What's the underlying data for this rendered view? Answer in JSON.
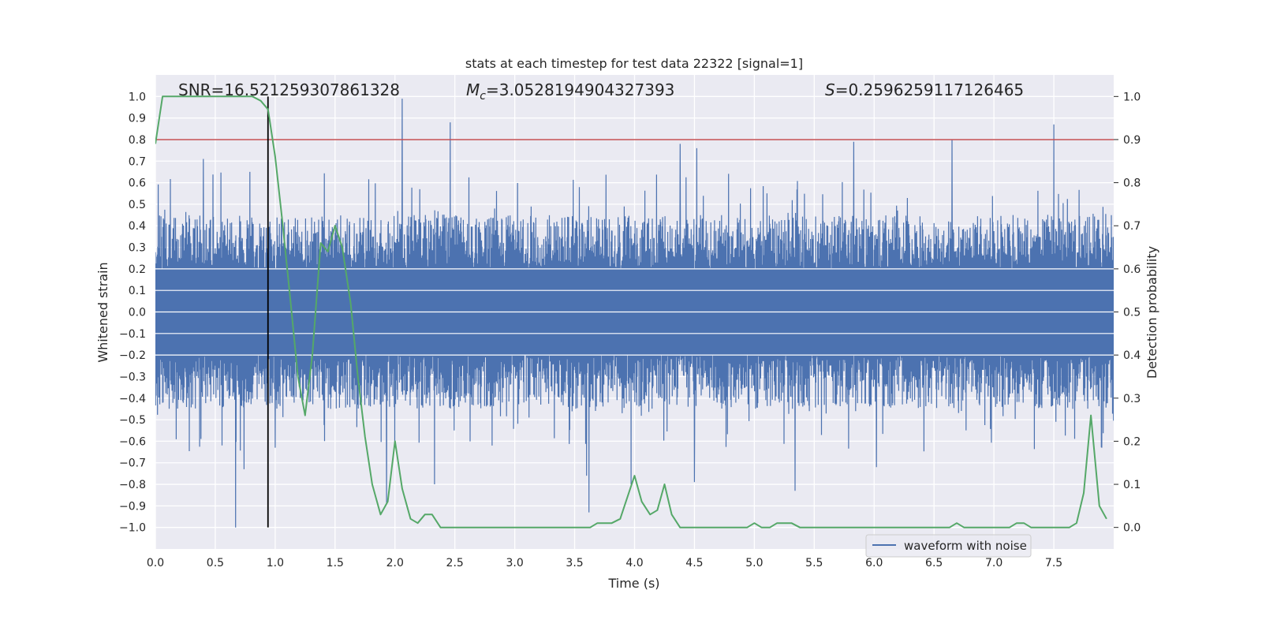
{
  "chart_data": {
    "type": "line",
    "title": "stats at each timestep for test data 22322 [signal=1]",
    "xlabel": "Time (s)",
    "ylabel": "Whitened strain",
    "y2label": "Detection probability",
    "xlim": [
      0.0,
      8.0
    ],
    "ylim": [
      -1.1,
      1.1
    ],
    "y2lim": [
      -0.05,
      1.05
    ],
    "xticks": [
      0.0,
      0.5,
      1.0,
      1.5,
      2.0,
      2.5,
      3.0,
      3.5,
      4.0,
      4.5,
      5.0,
      5.5,
      6.0,
      6.5,
      7.0,
      7.5
    ],
    "xtick_labels": [
      "0.0",
      "0.5",
      "1.0",
      "1.5",
      "2.0",
      "2.5",
      "3.0",
      "3.5",
      "4.0",
      "4.5",
      "5.0",
      "5.5",
      "6.0",
      "6.5",
      "7.0",
      "7.5"
    ],
    "yticks": [
      1.0,
      0.9,
      0.8,
      0.7,
      0.6,
      0.5,
      0.4,
      0.3,
      0.2,
      0.1,
      0.0,
      -0.1,
      -0.2,
      -0.3,
      -0.4,
      -0.5,
      -0.6,
      -0.7,
      -0.8,
      -0.9,
      -1.0
    ],
    "ytick_labels": [
      "1.0",
      "0.9",
      "0.8",
      "0.7",
      "0.6",
      "0.5",
      "0.4",
      "0.3",
      "0.2",
      "0.1",
      "0.0",
      "−0.1",
      "−0.2",
      "−0.3",
      "−0.4",
      "−0.5",
      "−0.6",
      "−0.7",
      "−0.8",
      "−0.9",
      "−1.0"
    ],
    "y2ticks": [
      1.0,
      0.9,
      0.8,
      0.7,
      0.6,
      0.5,
      0.4,
      0.3,
      0.2,
      0.1,
      0.0
    ],
    "y2tick_labels": [
      "1.0",
      "0.9",
      "0.8",
      "0.7",
      "0.6",
      "0.5",
      "0.4",
      "0.3",
      "0.2",
      "0.1",
      "0.0"
    ],
    "grid": true,
    "legend": {
      "position": "bottom-right",
      "entries": [
        "waveform with noise"
      ]
    },
    "annotations": {
      "snr_label": "SNR=16.521259307861328",
      "mc_symbol": "M",
      "mc_subscript": "c",
      "mc_value": "=3.0528194904327393",
      "s_symbol": "S",
      "s_value": "=0.2596259117126465"
    },
    "threshold_line": {
      "axis": "y2",
      "value": 0.9,
      "color": "#c44e52"
    },
    "marker_line": {
      "x": 0.94,
      "ymin": -1.0,
      "ymax": 1.0,
      "color": "#000000"
    },
    "series": [
      {
        "name": "waveform with noise",
        "axis": "y",
        "color": "#4c72b0",
        "sample_rate": 256,
        "envelope": {
          "core_abs": 0.2,
          "typical_peak_abs": 0.45,
          "min": -1.0,
          "max": 1.0
        },
        "spikes": [
          {
            "t": 0.67,
            "v": -1.0
          },
          {
            "t": 0.74,
            "v": -0.73
          },
          {
            "t": 0.4,
            "v": 0.71
          },
          {
            "t": 0.79,
            "v": 0.65
          },
          {
            "t": 1.0,
            "v": -0.63
          },
          {
            "t": 2.06,
            "v": 0.99
          },
          {
            "t": 1.93,
            "v": -0.89
          },
          {
            "t": 2.46,
            "v": 0.88
          },
          {
            "t": 2.33,
            "v": -0.8
          },
          {
            "t": 3.62,
            "v": -0.93
          },
          {
            "t": 3.6,
            "v": -0.76
          },
          {
            "t": 4.38,
            "v": 0.78
          },
          {
            "t": 4.52,
            "v": 0.76
          },
          {
            "t": 4.5,
            "v": -0.79
          },
          {
            "t": 3.97,
            "v": -0.8
          },
          {
            "t": 5.34,
            "v": -0.83
          },
          {
            "t": 5.83,
            "v": 0.79
          },
          {
            "t": 6.02,
            "v": -0.72
          },
          {
            "t": 6.65,
            "v": 0.8
          },
          {
            "t": 7.5,
            "v": 0.87
          },
          {
            "t": 7.9,
            "v": -0.63
          }
        ]
      },
      {
        "name": "detection probability",
        "axis": "y2",
        "color": "#55a868",
        "x": [
          0.0,
          0.06,
          0.13,
          0.19,
          0.25,
          0.31,
          0.38,
          0.44,
          0.5,
          0.56,
          0.63,
          0.69,
          0.75,
          0.81,
          0.88,
          0.94,
          1.0,
          1.06,
          1.13,
          1.19,
          1.25,
          1.31,
          1.38,
          1.44,
          1.5,
          1.56,
          1.63,
          1.69,
          1.75,
          1.81,
          1.88,
          1.94,
          2.0,
          2.06,
          2.13,
          2.19,
          2.25,
          2.31,
          2.38,
          2.44,
          2.5,
          2.56,
          2.63,
          2.69,
          2.75,
          2.81,
          2.88,
          2.94,
          3.0,
          3.06,
          3.13,
          3.19,
          3.25,
          3.31,
          3.38,
          3.44,
          3.5,
          3.56,
          3.63,
          3.69,
          3.75,
          3.81,
          3.88,
          3.94,
          4.0,
          4.06,
          4.13,
          4.19,
          4.25,
          4.31,
          4.38,
          4.44,
          4.5,
          4.56,
          4.63,
          4.69,
          4.75,
          4.81,
          4.88,
          4.94,
          5.0,
          5.06,
          5.13,
          5.19,
          5.25,
          5.31,
          5.38,
          5.44,
          5.5,
          5.56,
          5.63,
          5.69,
          5.75,
          5.81,
          5.88,
          5.94,
          6.0,
          6.06,
          6.13,
          6.19,
          6.25,
          6.31,
          6.38,
          6.44,
          6.5,
          6.56,
          6.63,
          6.69,
          6.75,
          6.81,
          6.88,
          6.94,
          7.0,
          7.06,
          7.13,
          7.19,
          7.25,
          7.31,
          7.38,
          7.44,
          7.5,
          7.56,
          7.63,
          7.69,
          7.75,
          7.81,
          7.88,
          7.94
        ],
        "y": [
          0.89,
          1.0,
          1.0,
          1.0,
          1.0,
          1.0,
          1.0,
          1.0,
          1.0,
          1.0,
          1.0,
          1.0,
          1.0,
          1.0,
          0.99,
          0.97,
          0.86,
          0.71,
          0.52,
          0.35,
          0.26,
          0.4,
          0.66,
          0.64,
          0.7,
          0.65,
          0.52,
          0.35,
          0.21,
          0.1,
          0.03,
          0.06,
          0.2,
          0.09,
          0.02,
          0.01,
          0.03,
          0.03,
          0.0,
          0.0,
          0.0,
          0.0,
          0.0,
          0.0,
          0.0,
          0.0,
          0.0,
          0.0,
          0.0,
          0.0,
          0.0,
          0.0,
          0.0,
          0.0,
          0.0,
          0.0,
          0.0,
          0.0,
          0.0,
          0.01,
          0.01,
          0.01,
          0.02,
          0.07,
          0.12,
          0.06,
          0.03,
          0.04,
          0.1,
          0.03,
          0.0,
          0.0,
          0.0,
          0.0,
          0.0,
          0.0,
          0.0,
          0.0,
          0.0,
          0.0,
          0.01,
          0.0,
          0.0,
          0.01,
          0.01,
          0.01,
          0.0,
          0.0,
          0.0,
          0.0,
          0.0,
          0.0,
          0.0,
          0.0,
          0.0,
          0.0,
          0.0,
          0.0,
          0.0,
          0.0,
          0.0,
          0.0,
          0.0,
          0.0,
          0.0,
          0.0,
          0.0,
          0.01,
          0.0,
          0.0,
          0.0,
          0.0,
          0.0,
          0.0,
          0.0,
          0.01,
          0.01,
          0.0,
          0.0,
          0.0,
          0.0,
          0.0,
          0.0,
          0.01,
          0.08,
          0.26,
          0.05,
          0.02
        ]
      }
    ]
  }
}
